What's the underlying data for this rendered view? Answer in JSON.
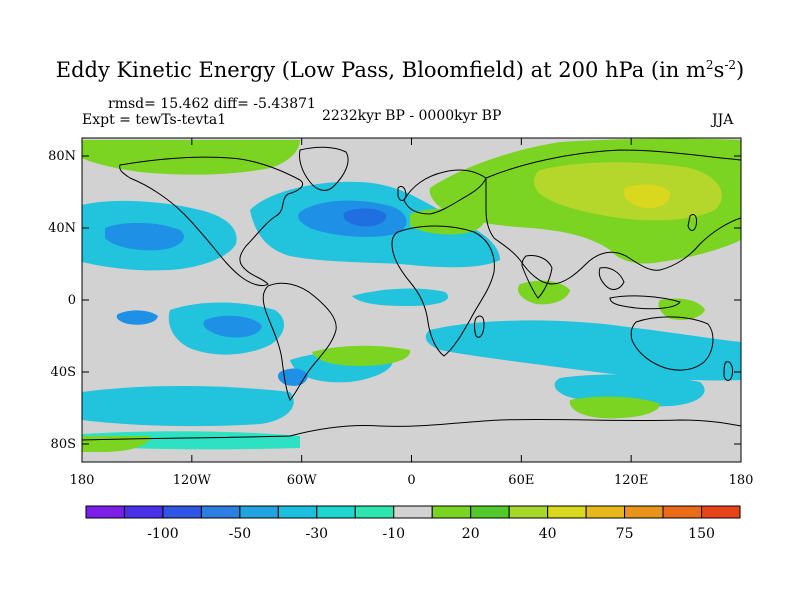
{
  "title": {
    "main": "Eddy Kinetic Energy (Low Pass, Bloomfield) at 200 hPa (in m",
    "sup1": "2",
    "mid": "s",
    "sup2": "-2",
    "end": ")"
  },
  "stats": "rmsd= 15.462 diff= -5.43871",
  "expt": "Expt = tewTs-tevta1",
  "period": "2232kyr BP - 0000kyr BP",
  "season": "JJA",
  "lat_ticks": [
    "80N",
    "40N",
    "0",
    "40S",
    "80S"
  ],
  "lon_ticks": [
    "180",
    "120W",
    "60W",
    "0",
    "60E",
    "120E",
    "180"
  ],
  "colorbar": {
    "colors": [
      "#7b1fe6",
      "#4a30e8",
      "#2f55e6",
      "#2a7fe0",
      "#22a3e0",
      "#1cc0dc",
      "#1fd7d0",
      "#2fe6b0",
      "#d2d2d2",
      "#7ad421",
      "#52c92a",
      "#a6d82a",
      "#d9d81f",
      "#e6b81c",
      "#e8941a",
      "#ea6c18",
      "#e84418"
    ],
    "labels": [
      {
        "text": "-100",
        "index": 2
      },
      {
        "text": "-50",
        "index": 4
      },
      {
        "text": "-30",
        "index": 6
      },
      {
        "text": "-10",
        "index": 8
      },
      {
        "text": "20",
        "index": 10
      },
      {
        "text": "40",
        "index": 12
      },
      {
        "text": "75",
        "index": 14
      },
      {
        "text": "150",
        "index": 16
      }
    ]
  },
  "colors": {
    "ocean_neutral": "#d2d2d2",
    "cyan": "#22c3dc",
    "blue": "#1e90e6",
    "deep_blue": "#1f6fe0",
    "aqua": "#2de1c2",
    "green": "#7ad421",
    "yellow_green": "#b5d62a",
    "yellow": "#d9d81f"
  }
}
